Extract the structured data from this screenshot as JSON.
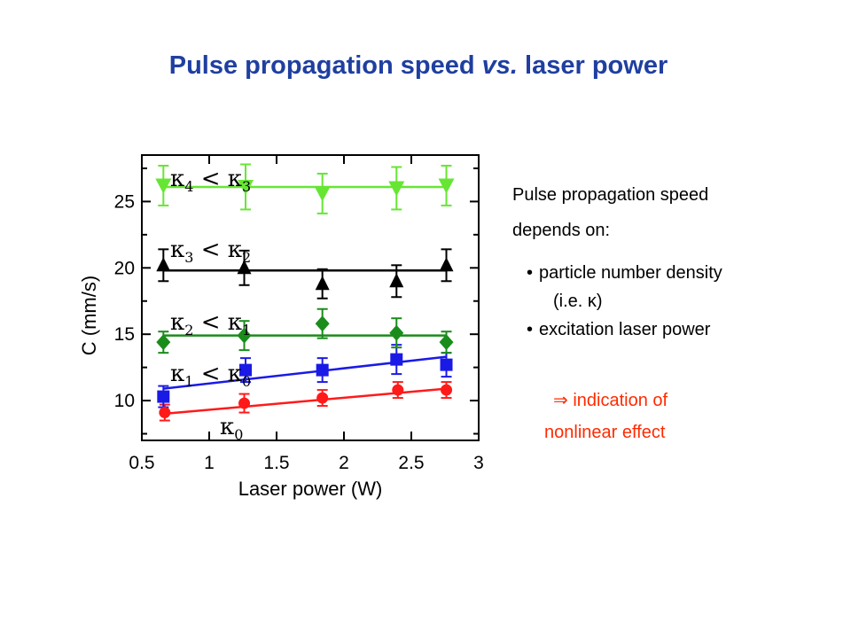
{
  "slide": {
    "title_part1": "Pulse propagation speed ",
    "title_vs": "vs.",
    "title_part2": " laser power"
  },
  "side_text": {
    "intro_line1": "Pulse propagation speed",
    "intro_line2": "depends on:",
    "bullet1": "particle number density",
    "bullet1_sub": "(i.e. κ)",
    "bullet2": "excitation laser power",
    "conclusion_line1": "⇒ indication of",
    "conclusion_line2": "nonlinear effect"
  },
  "chart_data": {
    "type": "scatter",
    "title": "",
    "xlabel": "Laser power (W)",
    "ylabel": "C (mm/s)",
    "xlim": [
      0.5,
      3.0
    ],
    "ylim": [
      7.0,
      28.5
    ],
    "xticks": [
      0.5,
      1,
      1.5,
      2,
      2.5,
      3
    ],
    "xtick_labels": [
      "0.5",
      "1",
      "1.5",
      "2",
      "2.5",
      "3"
    ],
    "yticks": [
      10,
      15,
      20,
      25
    ],
    "ytick_labels": [
      "10",
      "15",
      "20",
      "25"
    ],
    "grid": false,
    "legend": "none",
    "series": [
      {
        "kappa_index": "0",
        "kappa_rel": "",
        "color": "#ff1a1a",
        "marker": "circle",
        "x": [
          0.67,
          1.26,
          1.84,
          2.4,
          2.76
        ],
        "y": [
          9.1,
          9.8,
          10.2,
          10.8,
          10.8
        ],
        "err": [
          0.6,
          0.7,
          0.6,
          0.6,
          0.6
        ],
        "fit": [
          9.0,
          10.9
        ]
      },
      {
        "kappa_index": "1",
        "kappa_rel": "0",
        "color": "#1a1ae6",
        "marker": "square",
        "x": [
          0.66,
          1.27,
          1.84,
          2.39,
          2.76
        ],
        "y": [
          10.3,
          12.3,
          12.3,
          13.1,
          12.7
        ],
        "err": [
          0.8,
          0.9,
          0.9,
          1.1,
          0.9
        ],
        "fit": [
          10.9,
          13.3
        ]
      },
      {
        "kappa_index": "2",
        "kappa_rel": "1",
        "color": "#1a8c1a",
        "marker": "diamond",
        "x": [
          0.66,
          1.26,
          1.84,
          2.39,
          2.76
        ],
        "y": [
          14.4,
          14.9,
          15.8,
          15.1,
          14.4
        ],
        "err": [
          0.8,
          1.1,
          1.1,
          1.1,
          0.8
        ],
        "fit": [
          14.9,
          14.9
        ]
      },
      {
        "kappa_index": "3",
        "kappa_rel": "2",
        "color": "#000000",
        "marker": "triangle-up",
        "x": [
          0.66,
          1.26,
          1.84,
          2.39,
          2.76
        ],
        "y": [
          20.2,
          20.0,
          18.8,
          19.0,
          20.2
        ],
        "err": [
          1.2,
          1.3,
          1.1,
          1.2,
          1.2
        ],
        "fit": [
          19.8,
          19.8
        ]
      },
      {
        "kappa_index": "4",
        "kappa_rel": "3",
        "color": "#66e633",
        "marker": "triangle-down",
        "x": [
          0.66,
          1.27,
          1.84,
          2.39,
          2.76
        ],
        "y": [
          26.2,
          26.1,
          25.6,
          26.0,
          26.2
        ],
        "err": [
          1.5,
          1.7,
          1.5,
          1.6,
          1.5
        ],
        "fit": [
          26.1,
          26.1
        ]
      }
    ]
  }
}
